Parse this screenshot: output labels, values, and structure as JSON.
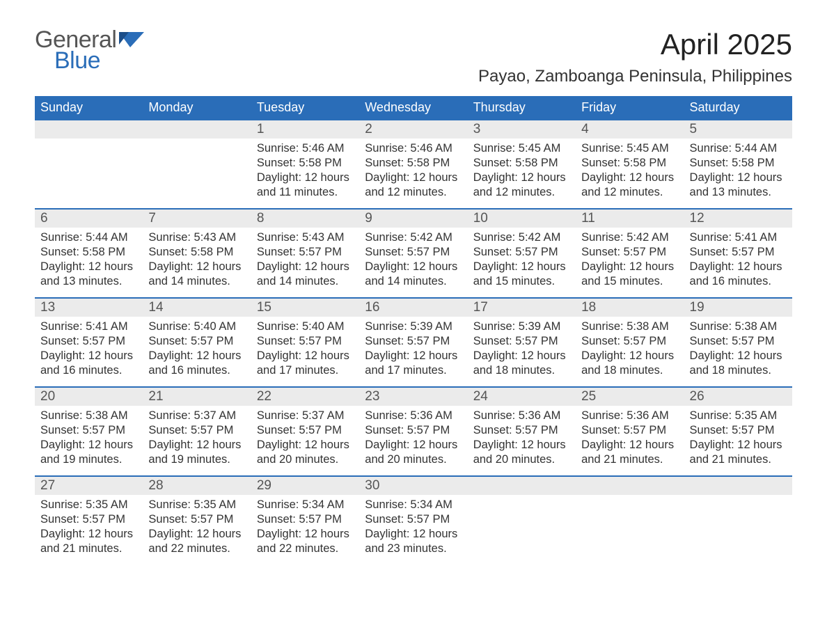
{
  "logo": {
    "line1": "General",
    "line2": "Blue"
  },
  "title": "April 2025",
  "location": "Payao, Zamboanga Peninsula, Philippines",
  "colors": {
    "header_bg": "#2a6db8",
    "header_text": "#ffffff",
    "daynum_bg": "#ebebeb",
    "row_border": "#2a6db8",
    "logo_blue": "#2a6db8",
    "body_text": "#333333",
    "page_bg": "#ffffff"
  },
  "typography": {
    "title_fontsize": 42,
    "location_fontsize": 24,
    "th_fontsize": 18,
    "daynum_fontsize": 19,
    "cell_fontsize": 16.5,
    "logo_fontsize": 34
  },
  "day_headers": [
    "Sunday",
    "Monday",
    "Tuesday",
    "Wednesday",
    "Thursday",
    "Friday",
    "Saturday"
  ],
  "weeks": [
    [
      null,
      null,
      {
        "n": "1",
        "sr": "5:46 AM",
        "ss": "5:58 PM",
        "dl": "12 hours and 11 minutes."
      },
      {
        "n": "2",
        "sr": "5:46 AM",
        "ss": "5:58 PM",
        "dl": "12 hours and 12 minutes."
      },
      {
        "n": "3",
        "sr": "5:45 AM",
        "ss": "5:58 PM",
        "dl": "12 hours and 12 minutes."
      },
      {
        "n": "4",
        "sr": "5:45 AM",
        "ss": "5:58 PM",
        "dl": "12 hours and 12 minutes."
      },
      {
        "n": "5",
        "sr": "5:44 AM",
        "ss": "5:58 PM",
        "dl": "12 hours and 13 minutes."
      }
    ],
    [
      {
        "n": "6",
        "sr": "5:44 AM",
        "ss": "5:58 PM",
        "dl": "12 hours and 13 minutes."
      },
      {
        "n": "7",
        "sr": "5:43 AM",
        "ss": "5:58 PM",
        "dl": "12 hours and 14 minutes."
      },
      {
        "n": "8",
        "sr": "5:43 AM",
        "ss": "5:57 PM",
        "dl": "12 hours and 14 minutes."
      },
      {
        "n": "9",
        "sr": "5:42 AM",
        "ss": "5:57 PM",
        "dl": "12 hours and 14 minutes."
      },
      {
        "n": "10",
        "sr": "5:42 AM",
        "ss": "5:57 PM",
        "dl": "12 hours and 15 minutes."
      },
      {
        "n": "11",
        "sr": "5:42 AM",
        "ss": "5:57 PM",
        "dl": "12 hours and 15 minutes."
      },
      {
        "n": "12",
        "sr": "5:41 AM",
        "ss": "5:57 PM",
        "dl": "12 hours and 16 minutes."
      }
    ],
    [
      {
        "n": "13",
        "sr": "5:41 AM",
        "ss": "5:57 PM",
        "dl": "12 hours and 16 minutes."
      },
      {
        "n": "14",
        "sr": "5:40 AM",
        "ss": "5:57 PM",
        "dl": "12 hours and 16 minutes."
      },
      {
        "n": "15",
        "sr": "5:40 AM",
        "ss": "5:57 PM",
        "dl": "12 hours and 17 minutes."
      },
      {
        "n": "16",
        "sr": "5:39 AM",
        "ss": "5:57 PM",
        "dl": "12 hours and 17 minutes."
      },
      {
        "n": "17",
        "sr": "5:39 AM",
        "ss": "5:57 PM",
        "dl": "12 hours and 18 minutes."
      },
      {
        "n": "18",
        "sr": "5:38 AM",
        "ss": "5:57 PM",
        "dl": "12 hours and 18 minutes."
      },
      {
        "n": "19",
        "sr": "5:38 AM",
        "ss": "5:57 PM",
        "dl": "12 hours and 18 minutes."
      }
    ],
    [
      {
        "n": "20",
        "sr": "5:38 AM",
        "ss": "5:57 PM",
        "dl": "12 hours and 19 minutes."
      },
      {
        "n": "21",
        "sr": "5:37 AM",
        "ss": "5:57 PM",
        "dl": "12 hours and 19 minutes."
      },
      {
        "n": "22",
        "sr": "5:37 AM",
        "ss": "5:57 PM",
        "dl": "12 hours and 20 minutes."
      },
      {
        "n": "23",
        "sr": "5:36 AM",
        "ss": "5:57 PM",
        "dl": "12 hours and 20 minutes."
      },
      {
        "n": "24",
        "sr": "5:36 AM",
        "ss": "5:57 PM",
        "dl": "12 hours and 20 minutes."
      },
      {
        "n": "25",
        "sr": "5:36 AM",
        "ss": "5:57 PM",
        "dl": "12 hours and 21 minutes."
      },
      {
        "n": "26",
        "sr": "5:35 AM",
        "ss": "5:57 PM",
        "dl": "12 hours and 21 minutes."
      }
    ],
    [
      {
        "n": "27",
        "sr": "5:35 AM",
        "ss": "5:57 PM",
        "dl": "12 hours and 21 minutes."
      },
      {
        "n": "28",
        "sr": "5:35 AM",
        "ss": "5:57 PM",
        "dl": "12 hours and 22 minutes."
      },
      {
        "n": "29",
        "sr": "5:34 AM",
        "ss": "5:57 PM",
        "dl": "12 hours and 22 minutes."
      },
      {
        "n": "30",
        "sr": "5:34 AM",
        "ss": "5:57 PM",
        "dl": "12 hours and 23 minutes."
      },
      null,
      null,
      null
    ]
  ],
  "labels": {
    "sunrise": "Sunrise: ",
    "sunset": "Sunset: ",
    "daylight": "Daylight: "
  }
}
